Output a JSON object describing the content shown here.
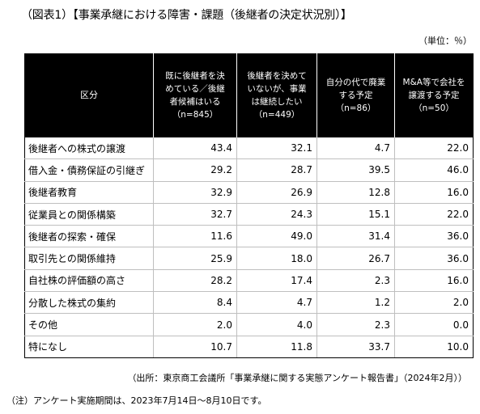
{
  "title": "（図表1）【事業承継における障害・課題（後継者の決定状況別）】",
  "unit": "（単位：％）",
  "table": {
    "headers": [
      {
        "lines": [
          "区分"
        ]
      },
      {
        "lines": [
          "既に後継者を決",
          "めている／後継",
          "者候補はいる",
          "（n=845）"
        ]
      },
      {
        "lines": [
          "後継者を決めて",
          "いないが、事業",
          "は継続したい",
          "（n=449）"
        ]
      },
      {
        "lines": [
          "自分の代で廃業",
          "する予定",
          "（n=86）"
        ]
      },
      {
        "lines": [
          "M&A等で会社を",
          "譲渡する予定",
          "（n=50）"
        ]
      }
    ],
    "rows": [
      {
        "label": "後継者への株式の譲渡",
        "values": [
          "43.4",
          "32.1",
          "4.7",
          "22.0"
        ]
      },
      {
        "label": "借入金・債務保証の引継ぎ",
        "values": [
          "29.2",
          "28.7",
          "39.5",
          "46.0"
        ]
      },
      {
        "label": "後継者教育",
        "values": [
          "32.9",
          "26.9",
          "12.8",
          "16.0"
        ]
      },
      {
        "label": "従業員との関係構築",
        "values": [
          "32.7",
          "24.3",
          "15.1",
          "22.0"
        ]
      },
      {
        "label": "後継者の探索・確保",
        "values": [
          "11.6",
          "49.0",
          "31.4",
          "36.0"
        ]
      },
      {
        "label": "取引先との関係維持",
        "values": [
          "25.9",
          "18.0",
          "26.7",
          "36.0"
        ]
      },
      {
        "label": "自社株の評価額の高さ",
        "values": [
          "28.2",
          "17.4",
          "2.3",
          "16.0"
        ]
      },
      {
        "label": "分散した株式の集約",
        "values": [
          "8.4",
          "4.7",
          "1.2",
          "2.0"
        ]
      },
      {
        "label": "その他",
        "values": [
          "2.0",
          "4.0",
          "2.3",
          "0.0"
        ]
      },
      {
        "label": "特になし",
        "values": [
          "10.7",
          "11.8",
          "33.7",
          "10.0"
        ]
      }
    ]
  },
  "source": "（出所：東京商工会議所「事業承継に関する実態アンケート報告書」（2024年2月））",
  "note": "（注）アンケート実施期間は、2023年7月14日～8月10日です。"
}
